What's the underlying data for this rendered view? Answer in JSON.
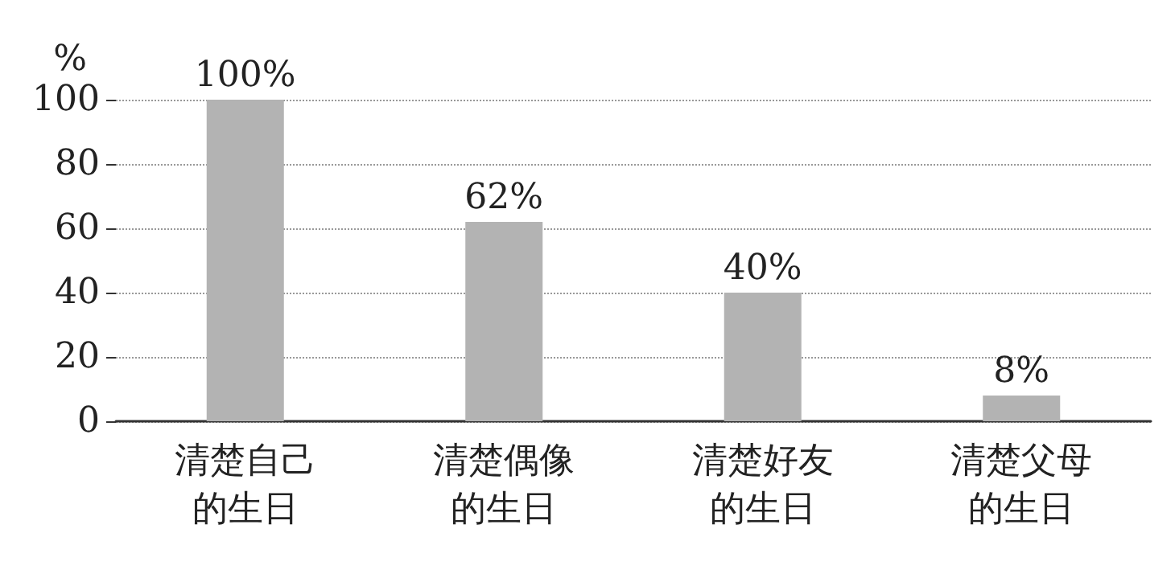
{
  "chart_data": {
    "type": "bar",
    "ylabel": "%",
    "categories": [
      "清楚自己的生日",
      "清楚偶像的生日",
      "清楚好友的生日",
      "清楚父母的生日"
    ],
    "values": [
      100,
      62,
      40,
      8
    ],
    "value_labels": [
      "100%",
      "62%",
      "40%",
      "8%"
    ],
    "color": "#b3b3b3",
    "ylim": [
      0,
      100
    ],
    "yticks": [
      0,
      20,
      40,
      60,
      80,
      100
    ],
    "grid": "y"
  }
}
